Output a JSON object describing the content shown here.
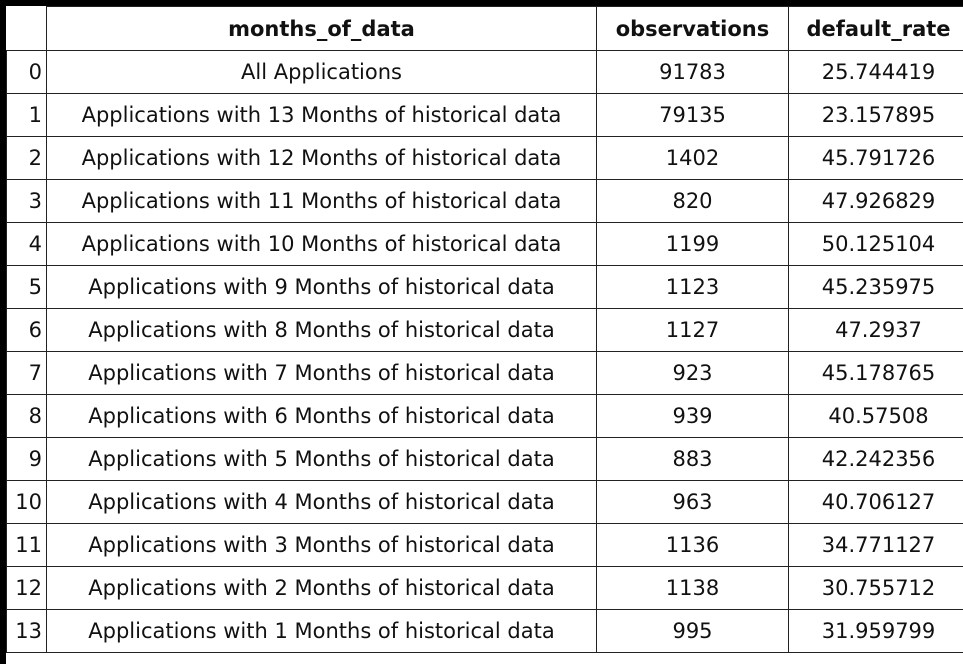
{
  "table": {
    "columns": [
      "",
      "months_of_data",
      "observations",
      "default_rate"
    ],
    "rows": [
      {
        "index": "0",
        "months_of_data": "All Applications",
        "observations": "91783",
        "default_rate": "25.744419"
      },
      {
        "index": "1",
        "months_of_data": "Applications with 13 Months of historical data",
        "observations": "79135",
        "default_rate": "23.157895"
      },
      {
        "index": "2",
        "months_of_data": "Applications with 12 Months of historical data",
        "observations": "1402",
        "default_rate": "45.791726"
      },
      {
        "index": "3",
        "months_of_data": "Applications with 11 Months of historical data",
        "observations": "820",
        "default_rate": "47.926829"
      },
      {
        "index": "4",
        "months_of_data": "Applications with 10 Months of historical data",
        "observations": "1199",
        "default_rate": "50.125104"
      },
      {
        "index": "5",
        "months_of_data": "Applications with 9 Months of historical data",
        "observations": "1123",
        "default_rate": "45.235975"
      },
      {
        "index": "6",
        "months_of_data": "Applications with 8 Months of historical data",
        "observations": "1127",
        "default_rate": "47.2937"
      },
      {
        "index": "7",
        "months_of_data": "Applications with 7 Months of historical data",
        "observations": "923",
        "default_rate": "45.178765"
      },
      {
        "index": "8",
        "months_of_data": "Applications with 6 Months of historical data",
        "observations": "939",
        "default_rate": "40.57508"
      },
      {
        "index": "9",
        "months_of_data": "Applications with 5 Months of historical data",
        "observations": "883",
        "default_rate": "42.242356"
      },
      {
        "index": "10",
        "months_of_data": "Applications with 4 Months of historical data",
        "observations": "963",
        "default_rate": "40.706127"
      },
      {
        "index": "11",
        "months_of_data": "Applications with 3 Months of historical data",
        "observations": "1136",
        "default_rate": "34.771127"
      },
      {
        "index": "12",
        "months_of_data": "Applications with 2 Months of historical data",
        "observations": "1138",
        "default_rate": "30.755712"
      },
      {
        "index": "13",
        "months_of_data": "Applications with 1 Months of historical data",
        "observations": "995",
        "default_rate": "31.959799"
      }
    ]
  }
}
